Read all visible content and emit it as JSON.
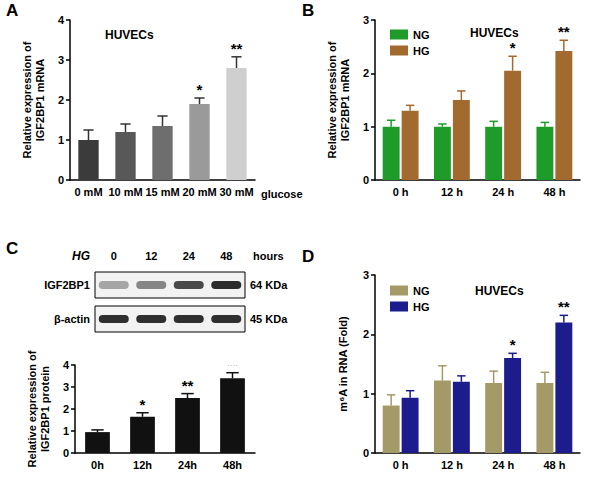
{
  "chart_data": [
    {
      "type": "bar",
      "panel": "A",
      "title": "HUVECs",
      "categories": [
        "0 mM",
        "10 mM",
        "15 mM",
        "20 mM",
        "30 mM"
      ],
      "xlabel": "glucose",
      "ylabel": "Relative expression of\nIGF2BP1 mRNA",
      "values": [
        1.0,
        1.2,
        1.35,
        1.9,
        2.8
      ],
      "errors": [
        0.25,
        0.2,
        0.25,
        0.15,
        0.28
      ],
      "colors": [
        "#3b3b3b",
        "#585858",
        "#6e6e6e",
        "#9a9a9a",
        "#cfcfcf"
      ],
      "ylim": [
        0,
        4
      ],
      "yticks": [
        0,
        1,
        2,
        3,
        4
      ],
      "grid": false,
      "annotations": [
        {
          "text": "*",
          "x": "20 mM"
        },
        {
          "text": "**",
          "x": "30 mM"
        }
      ]
    },
    {
      "type": "bar",
      "panel": "B",
      "title": "HUVECs",
      "categories": [
        "0 h",
        "12 h",
        "24 h",
        "48 h"
      ],
      "ylabel": "Relative expression of\nIGF2BP1 mRNA",
      "series": [
        {
          "name": "NG",
          "color": "#1f9b2a",
          "values": [
            1.0,
            1.0,
            1.0,
            1.0
          ],
          "errors": [
            0.12,
            0.05,
            0.1,
            0.08
          ]
        },
        {
          "name": "HG",
          "color": "#a26a2e",
          "values": [
            1.3,
            1.5,
            2.05,
            2.42
          ],
          "errors": [
            0.1,
            0.17,
            0.27,
            0.2
          ]
        }
      ],
      "ylim": [
        0,
        3
      ],
      "yticks": [
        0,
        1,
        2,
        3
      ],
      "grid": false,
      "legend": "upper left",
      "annotations": [
        {
          "text": "*",
          "x": "24 h",
          "series": "HG"
        },
        {
          "text": "**",
          "x": "48 h",
          "series": "HG"
        }
      ]
    },
    {
      "type": "bar",
      "categories": [
        "0h",
        "12h",
        "24h",
        "48h"
      ],
      "ylabel": "Relative expression of\nIGF2BP1 protein",
      "values": [
        0.95,
        1.65,
        2.5,
        3.4
      ],
      "errors": [
        0.1,
        0.18,
        0.2,
        0.25
      ],
      "color": "#111111",
      "ylim": [
        0,
        4
      ],
      "yticks": [
        0,
        1,
        2,
        3,
        4
      ],
      "grid": false,
      "annotations": [
        {
          "text": "*",
          "x": "12h"
        },
        {
          "text": "**",
          "x": "24h"
        },
        {
          "text": "**",
          "x": "48h"
        }
      ]
    },
    {
      "type": "bar",
      "panel": "D",
      "title": "HUVECs",
      "categories": [
        "0 h",
        "12 h",
        "24 h",
        "48 h"
      ],
      "ylabel": "m⁶A in RNA (Fold)",
      "series": [
        {
          "name": "NG",
          "color": "#a39a68",
          "values": [
            0.8,
            1.22,
            1.18,
            1.18
          ],
          "errors": [
            0.18,
            0.25,
            0.2,
            0.18
          ]
        },
        {
          "name": "HG",
          "color": "#1c1c8c",
          "values": [
            0.93,
            1.2,
            1.6,
            2.2
          ],
          "errors": [
            0.12,
            0.1,
            0.08,
            0.12
          ]
        }
      ],
      "ylim": [
        0,
        3
      ],
      "yticks": [
        0,
        1,
        2,
        3
      ],
      "grid": false,
      "legend": "upper left",
      "annotations": [
        {
          "text": "*",
          "x": "24 h",
          "series": "HG"
        },
        {
          "text": "**",
          "x": "48 h",
          "series": "HG"
        }
      ]
    }
  ],
  "blot": {
    "panel": "C",
    "treatment": "HG",
    "lanes": [
      "0",
      "12",
      "24",
      "48"
    ],
    "lane_unit": "hours",
    "rows": [
      {
        "name": "IGF2BP1",
        "size": "64 KDa",
        "band_intensity": [
          0.35,
          0.5,
          0.78,
          0.92
        ]
      },
      {
        "name": "β-actin",
        "size": "45 KDa",
        "band_intensity": [
          0.9,
          0.9,
          0.9,
          0.9
        ]
      }
    ]
  }
}
